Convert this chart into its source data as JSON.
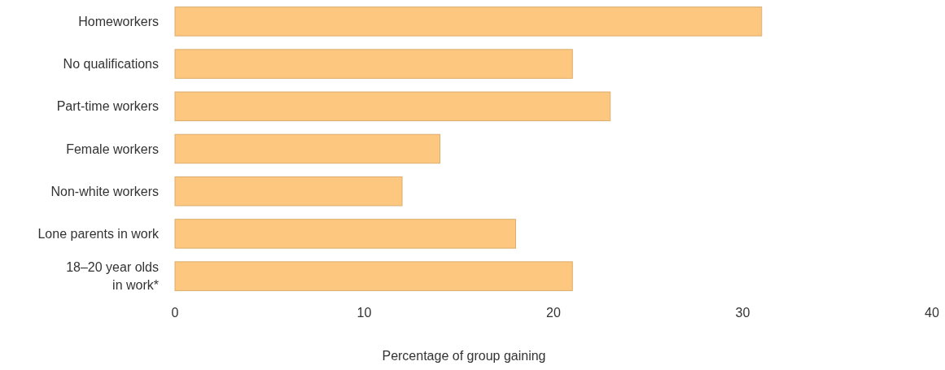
{
  "chart_data": {
    "type": "bar",
    "orientation": "horizontal",
    "xlabel": "Percentage of group gaining",
    "categories": [
      "Homeworkers",
      "No qualifications",
      "Part-time workers",
      "Female workers",
      "Non-white workers",
      "Lone parents in work",
      "18–20 year olds in work*"
    ],
    "values": [
      31,
      21,
      23,
      14,
      12,
      18,
      21
    ],
    "color": "#fdc77f",
    "xlim": [
      0,
      40
    ],
    "xticks": [
      0,
      10,
      20,
      30,
      40
    ],
    "grid": false
  }
}
